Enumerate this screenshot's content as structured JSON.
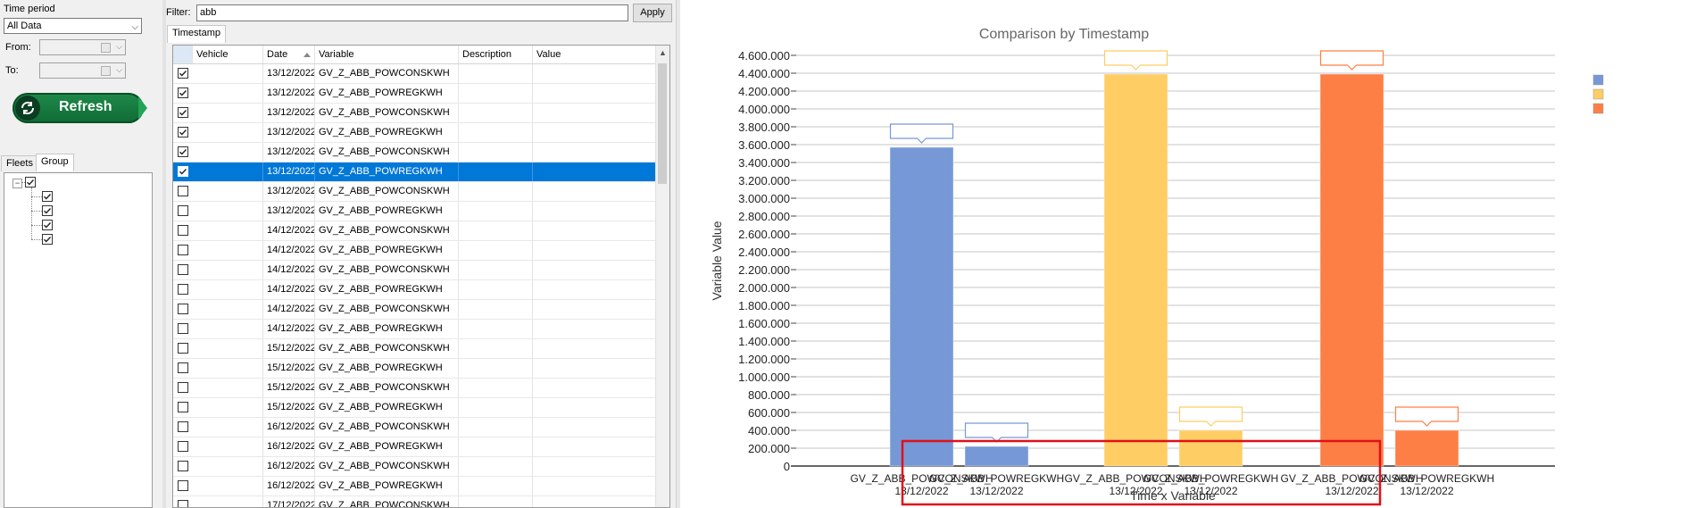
{
  "left": {
    "time_period_label": "Time period",
    "time_period_value": "All Data",
    "from_label": "From:",
    "to_label": "To:",
    "refresh_label": "Refresh",
    "tabs": [
      {
        "label": "Fleets",
        "active": false
      },
      {
        "label": "Group",
        "active": true
      }
    ],
    "tree": {
      "root_checked": true,
      "children_checked": [
        true,
        true,
        true,
        true
      ]
    }
  },
  "middle": {
    "filter_label": "Filter:",
    "filter_value": "abb",
    "apply_label": "Apply",
    "tab_label": "Timestamp",
    "columns": [
      "Vehicle",
      "Date",
      "Variable",
      "Description",
      "Value"
    ],
    "rows": [
      {
        "checked": true,
        "selected": false,
        "vehicle": "",
        "date": "13/12/2022",
        "variable": "GV_Z_ABB_POWCONSKWH",
        "description": "",
        "value": ""
      },
      {
        "checked": true,
        "selected": false,
        "vehicle": "",
        "date": "13/12/2022",
        "variable": "GV_Z_ABB_POWREGKWH",
        "description": "",
        "value": ""
      },
      {
        "checked": true,
        "selected": false,
        "vehicle": "",
        "date": "13/12/2022",
        "variable": "GV_Z_ABB_POWCONSKWH",
        "description": "",
        "value": ""
      },
      {
        "checked": true,
        "selected": false,
        "vehicle": "",
        "date": "13/12/2022",
        "variable": "GV_Z_ABB_POWREGKWH",
        "description": "",
        "value": ""
      },
      {
        "checked": true,
        "selected": false,
        "vehicle": "",
        "date": "13/12/2022",
        "variable": "GV_Z_ABB_POWCONSKWH",
        "description": "",
        "value": ""
      },
      {
        "checked": true,
        "selected": true,
        "vehicle": "",
        "date": "13/12/2022",
        "variable": "GV_Z_ABB_POWREGKWH",
        "description": "",
        "value": ""
      },
      {
        "checked": false,
        "selected": false,
        "vehicle": "",
        "date": "13/12/2022",
        "variable": "GV_Z_ABB_POWCONSKWH",
        "description": "",
        "value": ""
      },
      {
        "checked": false,
        "selected": false,
        "vehicle": "",
        "date": "13/12/2022",
        "variable": "GV_Z_ABB_POWREGKWH",
        "description": "",
        "value": ""
      },
      {
        "checked": false,
        "selected": false,
        "vehicle": "",
        "date": "14/12/2022",
        "variable": "GV_Z_ABB_POWCONSKWH",
        "description": "",
        "value": ""
      },
      {
        "checked": false,
        "selected": false,
        "vehicle": "",
        "date": "14/12/2022",
        "variable": "GV_Z_ABB_POWREGKWH",
        "description": "",
        "value": ""
      },
      {
        "checked": false,
        "selected": false,
        "vehicle": "",
        "date": "14/12/2022",
        "variable": "GV_Z_ABB_POWCONSKWH",
        "description": "",
        "value": ""
      },
      {
        "checked": false,
        "selected": false,
        "vehicle": "",
        "date": "14/12/2022",
        "variable": "GV_Z_ABB_POWREGKWH",
        "description": "",
        "value": ""
      },
      {
        "checked": false,
        "selected": false,
        "vehicle": "",
        "date": "14/12/2022",
        "variable": "GV_Z_ABB_POWCONSKWH",
        "description": "",
        "value": ""
      },
      {
        "checked": false,
        "selected": false,
        "vehicle": "",
        "date": "14/12/2022",
        "variable": "GV_Z_ABB_POWREGKWH",
        "description": "",
        "value": ""
      },
      {
        "checked": false,
        "selected": false,
        "vehicle": "",
        "date": "15/12/2022",
        "variable": "GV_Z_ABB_POWCONSKWH",
        "description": "",
        "value": ""
      },
      {
        "checked": false,
        "selected": false,
        "vehicle": "",
        "date": "15/12/2022",
        "variable": "GV_Z_ABB_POWREGKWH",
        "description": "",
        "value": ""
      },
      {
        "checked": false,
        "selected": false,
        "vehicle": "",
        "date": "15/12/2022",
        "variable": "GV_Z_ABB_POWCONSKWH",
        "description": "",
        "value": ""
      },
      {
        "checked": false,
        "selected": false,
        "vehicle": "",
        "date": "15/12/2022",
        "variable": "GV_Z_ABB_POWREGKWH",
        "description": "",
        "value": ""
      },
      {
        "checked": false,
        "selected": false,
        "vehicle": "",
        "date": "16/12/2022",
        "variable": "GV_Z_ABB_POWCONSKWH",
        "description": "",
        "value": ""
      },
      {
        "checked": false,
        "selected": false,
        "vehicle": "",
        "date": "16/12/2022",
        "variable": "GV_Z_ABB_POWREGKWH",
        "description": "",
        "value": ""
      },
      {
        "checked": false,
        "selected": false,
        "vehicle": "",
        "date": "16/12/2022",
        "variable": "GV_Z_ABB_POWCONSKWH",
        "description": "",
        "value": ""
      },
      {
        "checked": false,
        "selected": false,
        "vehicle": "",
        "date": "16/12/2022",
        "variable": "GV_Z_ABB_POWREGKWH",
        "description": "",
        "value": ""
      },
      {
        "checked": false,
        "selected": false,
        "vehicle": "",
        "date": "17/12/2022",
        "variable": "GV_Z_ABB_POWCONSKWH",
        "description": "",
        "value": ""
      }
    ]
  },
  "chart_data": {
    "type": "bar",
    "title": "Comparison by Timestamp",
    "xlabel": "Time x Variable",
    "ylabel": "Variable Value",
    "ylim": [
      0,
      4600000
    ],
    "ytick_step": 200000,
    "y_ticks": [
      "0",
      "200.000",
      "400.000",
      "600.000",
      "800.000",
      "1.000.000",
      "1.200.000",
      "1.400.000",
      "1.600.000",
      "1.800.000",
      "2.000.000",
      "2.200.000",
      "2.400.000",
      "2.600.000",
      "2.800.000",
      "3.000.000",
      "3.200.000",
      "3.400.000",
      "3.600.000",
      "3.800.000",
      "4.000.000",
      "4.200.000",
      "4.400.000",
      "4.600.000"
    ],
    "grid": true,
    "legend_position": "top-right",
    "categories": [
      {
        "name": "GV_Z_ABB_POWCONSKWH",
        "date": "13/12/2022"
      },
      {
        "name": "GV_Z_ABB_POWREGKWH",
        "date": "13/12/2022"
      },
      {
        "name": "GV_Z_ABB_POWCONSKWH",
        "date": "13/12/2022"
      },
      {
        "name": "GV_Z_ABB_POWREGKWH",
        "date": "13/12/2022"
      },
      {
        "name": "GV_Z_ABB_POWCONSKWH",
        "date": "13/12/2022"
      },
      {
        "name": "GV_Z_ABB_POWREGKWH",
        "date": "13/12/2022"
      }
    ],
    "bars": [
      {
        "value": 3570000,
        "color": "#7798d6"
      },
      {
        "value": 220000,
        "color": "#7798d6"
      },
      {
        "value": 4390000,
        "color": "#fecd64"
      },
      {
        "value": 400000,
        "color": "#fecd64"
      },
      {
        "value": 4390000,
        "color": "#fe7f45"
      },
      {
        "value": 400000,
        "color": "#fe7f45"
      }
    ],
    "legend_colors": [
      "#7798d6",
      "#fecd64",
      "#fe7f45"
    ],
    "highlight_color": "#e0101a"
  }
}
